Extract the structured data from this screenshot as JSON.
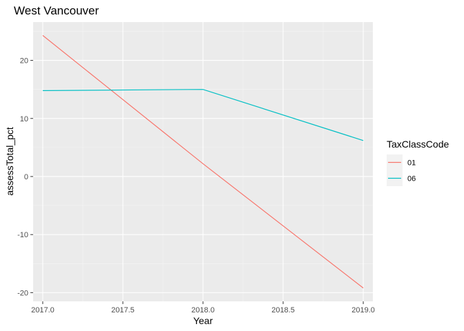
{
  "chart_data": {
    "type": "line",
    "title": "West Vancouver",
    "xlabel": "Year",
    "ylabel": "assessTotal_pct",
    "x_ticks": [
      "2017.0",
      "2017.5",
      "2018.0",
      "2018.5",
      "2019.0"
    ],
    "y_ticks": [
      "-20",
      "-10",
      "0",
      "10",
      "20"
    ],
    "xlim": [
      2016.94,
      2019.06
    ],
    "ylim": [
      -21.5,
      26.6
    ],
    "grid": true,
    "legend": {
      "title": "TaxClassCode",
      "position": "right"
    },
    "series": [
      {
        "name": "01",
        "color": "#F8766D",
        "x": [
          2017,
          2018,
          2019
        ],
        "y": [
          24.3,
          2.2,
          -19.2
        ]
      },
      {
        "name": "06",
        "color": "#00BFC4",
        "x": [
          2017,
          2018,
          2019
        ],
        "y": [
          14.8,
          15.0,
          6.2
        ]
      }
    ]
  }
}
